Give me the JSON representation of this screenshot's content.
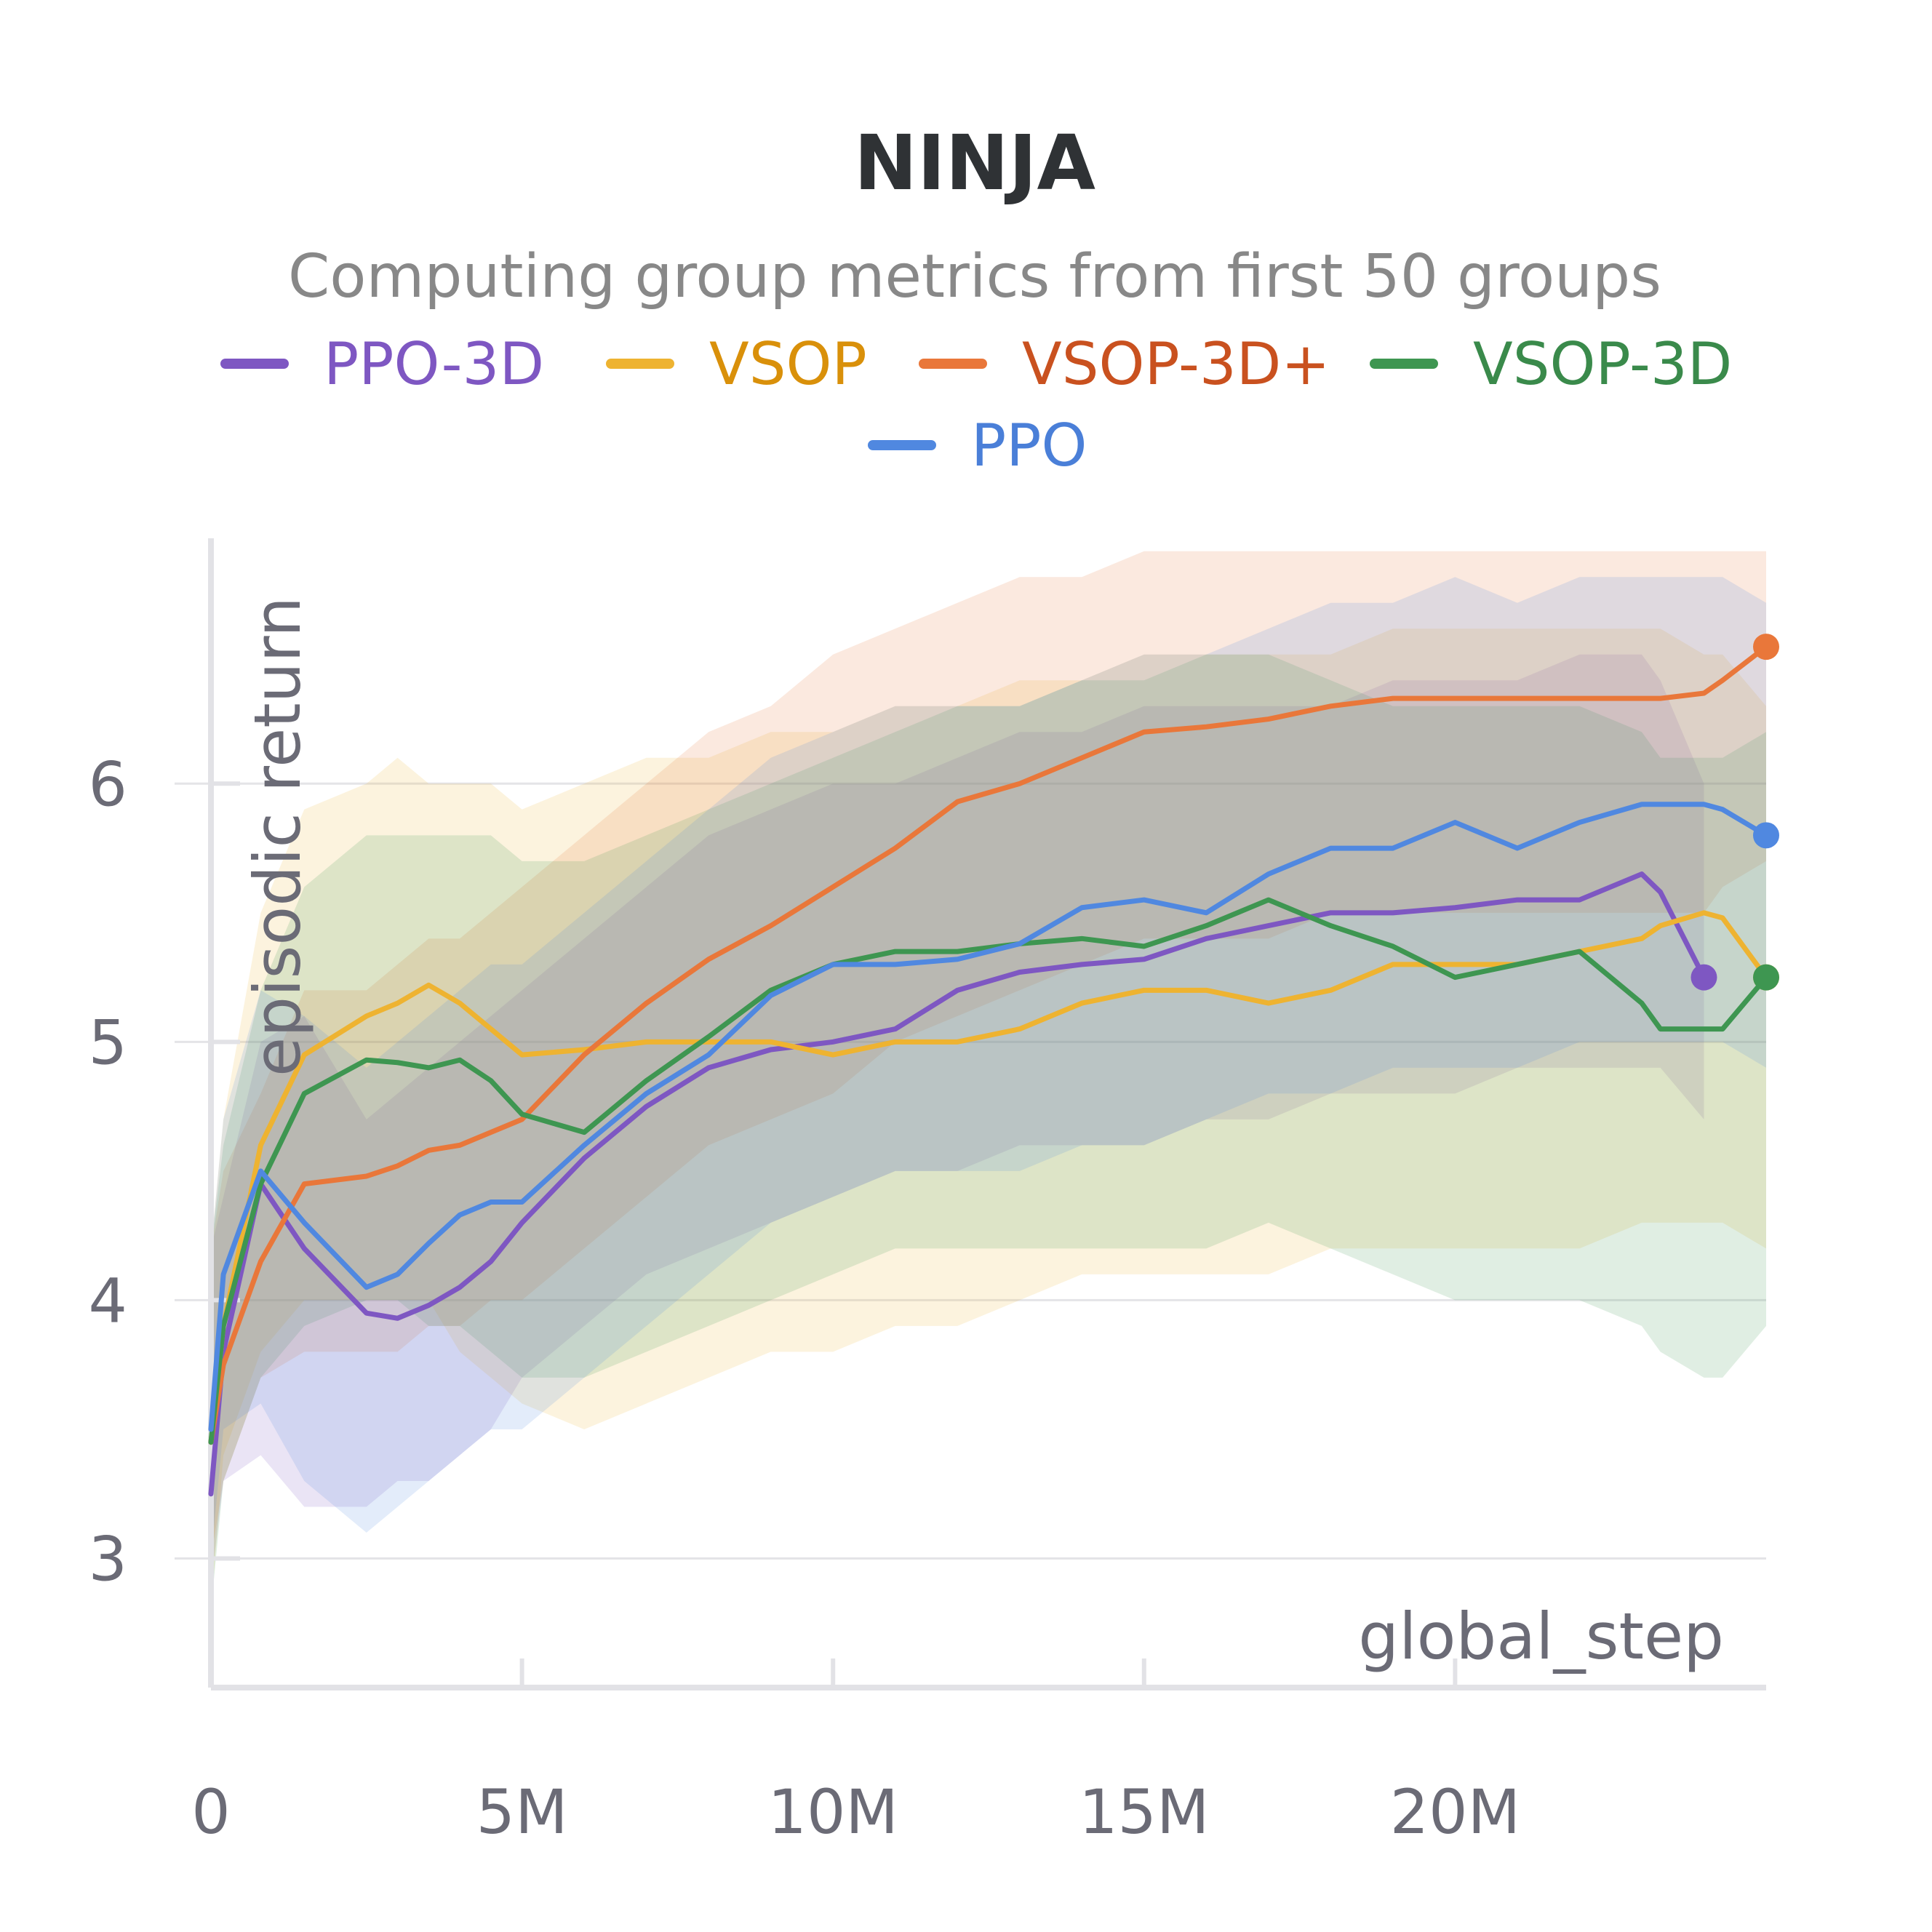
{
  "chart_data": {
    "type": "line",
    "title": "NINJA",
    "subtitle": "Computing group metrics from first 50 groups",
    "xlabel": "global_step",
    "ylabel": "episodic return",
    "xlim": [
      0,
      25000000
    ],
    "ylim": [
      2.5,
      6.95
    ],
    "x_ticks": [
      0,
      5000000,
      10000000,
      15000000,
      20000000
    ],
    "x_tick_labels": [
      "0",
      "5M",
      "10M",
      "15M",
      "20M"
    ],
    "y_ticks": [
      3,
      4,
      5,
      6
    ],
    "y_tick_labels": [
      "3",
      "4",
      "5",
      "6"
    ],
    "grid": true,
    "legend_position": "top",
    "x": [
      0,
      200000,
      800000,
      1500000,
      2500000,
      3000000,
      3500000,
      4000000,
      4500000,
      5000000,
      6000000,
      7000000,
      8000000,
      9000000,
      10000000,
      11000000,
      12000000,
      13000000,
      14000000,
      15000000,
      16000000,
      17000000,
      18000000,
      19000000,
      20000000,
      21000000,
      22000000,
      23000000,
      23300000,
      24000000,
      24300000,
      25000000
    ],
    "series": [
      {
        "name": "PPO-3D",
        "color": "#7e57c2",
        "values": [
          3.25,
          3.8,
          4.45,
          4.2,
          3.95,
          3.93,
          3.98,
          4.05,
          4.15,
          4.3,
          4.55,
          4.75,
          4.9,
          4.97,
          5.0,
          5.05,
          5.2,
          5.27,
          5.3,
          5.32,
          5.4,
          5.45,
          5.5,
          5.5,
          5.52,
          5.55,
          5.55,
          5.65,
          5.58,
          5.25,
          null,
          null
        ],
        "band": [
          [
            2.9,
            4.2
          ],
          [
            3.3,
            4.4
          ],
          [
            3.4,
            5.0
          ],
          [
            3.2,
            5.1
          ],
          [
            3.2,
            4.7
          ],
          [
            3.3,
            4.8
          ],
          [
            3.3,
            4.9
          ],
          [
            3.4,
            5.0
          ],
          [
            3.5,
            5.1
          ],
          [
            3.7,
            5.2
          ],
          [
            3.9,
            5.4
          ],
          [
            4.1,
            5.6
          ],
          [
            4.2,
            5.8
          ],
          [
            4.3,
            5.9
          ],
          [
            4.4,
            6.0
          ],
          [
            4.5,
            6.0
          ],
          [
            4.5,
            6.1
          ],
          [
            4.6,
            6.2
          ],
          [
            4.6,
            6.2
          ],
          [
            4.6,
            6.3
          ],
          [
            4.7,
            6.3
          ],
          [
            4.7,
            6.3
          ],
          [
            4.8,
            6.3
          ],
          [
            4.8,
            6.4
          ],
          [
            4.8,
            6.4
          ],
          [
            4.9,
            6.4
          ],
          [
            4.9,
            6.5
          ],
          [
            4.9,
            6.5
          ],
          [
            4.9,
            6.4
          ],
          [
            4.7,
            6.0
          ],
          null,
          null
        ]
      },
      {
        "name": "VSOP",
        "color": "#eeb331",
        "values": [
          3.45,
          3.9,
          4.6,
          4.95,
          5.1,
          5.15,
          5.22,
          5.15,
          5.05,
          4.95,
          4.97,
          5.0,
          5.0,
          5.0,
          4.95,
          5.0,
          5.0,
          5.05,
          5.15,
          5.2,
          5.2,
          5.15,
          5.2,
          5.3,
          5.3,
          5.3,
          5.35,
          5.4,
          5.45,
          5.5,
          5.48,
          5.25
        ],
        "band": [
          [
            2.8,
            4.2
          ],
          [
            3.4,
            4.7
          ],
          [
            3.8,
            5.5
          ],
          [
            4.0,
            5.9
          ],
          [
            4.0,
            6.0
          ],
          [
            4.0,
            6.1
          ],
          [
            4.0,
            6.0
          ],
          [
            3.8,
            6.0
          ],
          [
            3.7,
            6.0
          ],
          [
            3.6,
            5.9
          ],
          [
            3.5,
            6.0
          ],
          [
            3.6,
            6.1
          ],
          [
            3.7,
            6.1
          ],
          [
            3.8,
            6.2
          ],
          [
            3.8,
            6.2
          ],
          [
            3.9,
            6.3
          ],
          [
            3.9,
            6.3
          ],
          [
            4.0,
            6.4
          ],
          [
            4.1,
            6.4
          ],
          [
            4.1,
            6.5
          ],
          [
            4.1,
            6.5
          ],
          [
            4.1,
            6.5
          ],
          [
            4.2,
            6.5
          ],
          [
            4.2,
            6.6
          ],
          [
            4.2,
            6.6
          ],
          [
            4.2,
            6.6
          ],
          [
            4.2,
            6.6
          ],
          [
            4.3,
            6.6
          ],
          [
            4.3,
            6.6
          ],
          [
            4.3,
            6.5
          ],
          [
            4.3,
            6.5
          ],
          [
            4.2,
            6.3
          ]
        ]
      },
      {
        "name": "VSOP-3D+",
        "color": "#e9773a",
        "values": [
          3.45,
          3.75,
          4.15,
          4.45,
          4.48,
          4.52,
          4.58,
          4.6,
          4.65,
          4.7,
          4.95,
          5.15,
          5.32,
          5.45,
          5.6,
          5.75,
          5.93,
          6.0,
          6.1,
          6.2,
          6.22,
          6.25,
          6.3,
          6.33,
          6.33,
          6.33,
          6.33,
          6.33,
          6.33,
          6.35,
          6.4,
          6.53
        ],
        "band": [
          [
            3.0,
            4.2
          ],
          [
            3.3,
            4.5
          ],
          [
            3.7,
            4.8
          ],
          [
            3.8,
            5.2
          ],
          [
            3.8,
            5.2
          ],
          [
            3.8,
            5.3
          ],
          [
            3.9,
            5.4
          ],
          [
            3.9,
            5.4
          ],
          [
            4.0,
            5.5
          ],
          [
            4.0,
            5.6
          ],
          [
            4.2,
            5.8
          ],
          [
            4.4,
            6.0
          ],
          [
            4.6,
            6.2
          ],
          [
            4.7,
            6.3
          ],
          [
            4.8,
            6.5
          ],
          [
            5.0,
            6.6
          ],
          [
            5.1,
            6.7
          ],
          [
            5.2,
            6.8
          ],
          [
            5.3,
            6.8
          ],
          [
            5.4,
            6.9
          ],
          [
            5.4,
            6.9
          ],
          [
            5.4,
            6.9
          ],
          [
            5.5,
            6.9
          ],
          [
            5.5,
            6.9
          ],
          [
            5.5,
            6.9
          ],
          [
            5.5,
            6.9
          ],
          [
            5.5,
            6.9
          ],
          [
            5.5,
            6.9
          ],
          [
            5.5,
            6.9
          ],
          [
            5.5,
            6.9
          ],
          [
            5.6,
            6.9
          ],
          [
            5.7,
            6.9
          ]
        ]
      },
      {
        "name": "VSOP-3D",
        "color": "#3e9651",
        "values": [
          3.45,
          3.9,
          4.45,
          4.8,
          4.93,
          4.92,
          4.9,
          4.93,
          4.85,
          4.72,
          4.65,
          4.85,
          5.02,
          5.2,
          5.3,
          5.35,
          5.35,
          5.38,
          5.4,
          5.37,
          5.45,
          5.55,
          5.45,
          5.37,
          5.25,
          5.3,
          5.35,
          5.15,
          5.05,
          5.05,
          5.05,
          5.25
        ],
        "band": [
          [
            2.8,
            4.2
          ],
          [
            3.3,
            4.6
          ],
          [
            3.7,
            5.2
          ],
          [
            3.9,
            5.6
          ],
          [
            4.0,
            5.8
          ],
          [
            4.0,
            5.8
          ],
          [
            3.9,
            5.8
          ],
          [
            3.9,
            5.8
          ],
          [
            3.8,
            5.8
          ],
          [
            3.7,
            5.7
          ],
          [
            3.7,
            5.7
          ],
          [
            3.8,
            5.8
          ],
          [
            3.9,
            5.9
          ],
          [
            4.0,
            6.0
          ],
          [
            4.1,
            6.1
          ],
          [
            4.2,
            6.2
          ],
          [
            4.2,
            6.3
          ],
          [
            4.2,
            6.3
          ],
          [
            4.2,
            6.4
          ],
          [
            4.2,
            6.4
          ],
          [
            4.2,
            6.5
          ],
          [
            4.3,
            6.5
          ],
          [
            4.2,
            6.4
          ],
          [
            4.1,
            6.3
          ],
          [
            4.0,
            6.3
          ],
          [
            4.0,
            6.3
          ],
          [
            4.0,
            6.3
          ],
          [
            3.9,
            6.2
          ],
          [
            3.8,
            6.1
          ],
          [
            3.7,
            6.1
          ],
          [
            3.7,
            6.1
          ],
          [
            3.9,
            6.2
          ]
        ]
      },
      {
        "name": "PPO",
        "color": "#5088e0",
        "values": [
          3.5,
          4.1,
          4.5,
          4.3,
          4.05,
          4.1,
          4.22,
          4.33,
          4.38,
          4.38,
          4.6,
          4.8,
          4.95,
          5.18,
          5.3,
          5.3,
          5.32,
          5.38,
          5.52,
          5.55,
          5.5,
          5.65,
          5.75,
          5.75,
          5.85,
          5.75,
          5.85,
          5.92,
          5.92,
          5.92,
          5.9,
          5.8
        ],
        "band": [
          [
            3.0,
            4.2
          ],
          [
            3.5,
            4.7
          ],
          [
            3.6,
            5.2
          ],
          [
            3.3,
            5.1
          ],
          [
            3.1,
            4.9
          ],
          [
            3.2,
            5.0
          ],
          [
            3.3,
            5.1
          ],
          [
            3.4,
            5.2
          ],
          [
            3.5,
            5.3
          ],
          [
            3.5,
            5.3
          ],
          [
            3.7,
            5.5
          ],
          [
            3.9,
            5.7
          ],
          [
            4.1,
            5.9
          ],
          [
            4.3,
            6.1
          ],
          [
            4.4,
            6.2
          ],
          [
            4.5,
            6.3
          ],
          [
            4.5,
            6.3
          ],
          [
            4.5,
            6.3
          ],
          [
            4.6,
            6.4
          ],
          [
            4.6,
            6.5
          ],
          [
            4.7,
            6.5
          ],
          [
            4.8,
            6.6
          ],
          [
            4.8,
            6.7
          ],
          [
            4.9,
            6.7
          ],
          [
            4.9,
            6.8
          ],
          [
            4.9,
            6.7
          ],
          [
            5.0,
            6.8
          ],
          [
            5.0,
            6.8
          ],
          [
            5.0,
            6.8
          ],
          [
            5.0,
            6.8
          ],
          [
            5.0,
            6.8
          ],
          [
            4.9,
            6.7
          ]
        ]
      }
    ]
  }
}
